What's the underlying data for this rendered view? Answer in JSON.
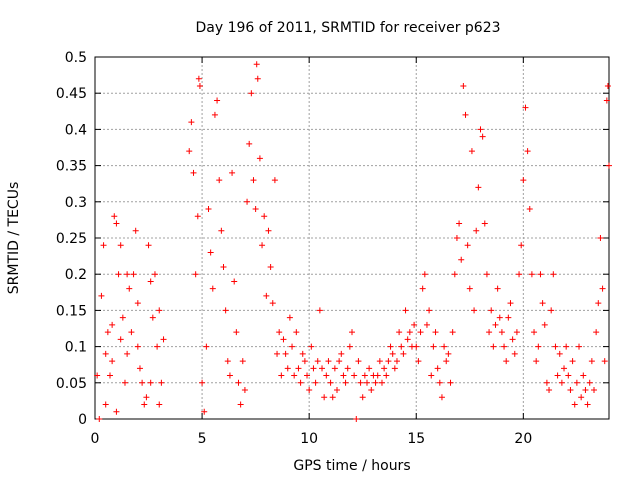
{
  "chart_data": {
    "type": "scatter",
    "title": "Day 196 of 2011, SRMTID for receiver p623",
    "xlabel": "GPS time / hours",
    "ylabel": "SRMTID / TECUs",
    "xlim": [
      0,
      24
    ],
    "ylim": [
      0,
      0.5
    ],
    "x_ticks": [
      {
        "value": 0,
        "label": "0"
      },
      {
        "value": 5,
        "label": "5"
      },
      {
        "value": 10,
        "label": "10"
      },
      {
        "value": 15,
        "label": "15"
      },
      {
        "value": 20,
        "label": "20"
      }
    ],
    "y_ticks": [
      {
        "value": 0,
        "label": "0"
      },
      {
        "value": 0.05,
        "label": "0.05"
      },
      {
        "value": 0.1,
        "label": "0.1"
      },
      {
        "value": 0.15,
        "label": "0.15"
      },
      {
        "value": 0.2,
        "label": "0.2"
      },
      {
        "value": 0.25,
        "label": "0.25"
      },
      {
        "value": 0.3,
        "label": "0.3"
      },
      {
        "value": 0.35,
        "label": "0.35"
      },
      {
        "value": 0.4,
        "label": "0.4"
      },
      {
        "value": 0.45,
        "label": "0.45"
      },
      {
        "value": 0.5,
        "label": "0.5"
      }
    ],
    "grid": true,
    "marker": "plus",
    "color": "#ff0000",
    "series": [
      {
        "name": "SRMTID",
        "points": [
          [
            0.1,
            0.06
          ],
          [
            0.2,
            0.0
          ],
          [
            0.3,
            0.17
          ],
          [
            0.4,
            0.24
          ],
          [
            0.5,
            0.09
          ],
          [
            0.6,
            0.12
          ],
          [
            0.7,
            0.06
          ],
          [
            0.8,
            0.08
          ],
          [
            0.9,
            0.28
          ],
          [
            1.0,
            0.27
          ],
          [
            1.1,
            0.2
          ],
          [
            1.2,
            0.24
          ],
          [
            1.3,
            0.14
          ],
          [
            1.4,
            0.05
          ],
          [
            1.5,
            0.09
          ],
          [
            1.6,
            0.18
          ],
          [
            1.7,
            0.12
          ],
          [
            1.8,
            0.2
          ],
          [
            1.9,
            0.26
          ],
          [
            2.0,
            0.16
          ],
          [
            2.1,
            0.07
          ],
          [
            2.2,
            0.05
          ],
          [
            2.3,
            0.02
          ],
          [
            2.4,
            0.03
          ],
          [
            2.5,
            0.24
          ],
          [
            2.6,
            0.19
          ],
          [
            2.7,
            0.14
          ],
          [
            2.8,
            0.2
          ],
          [
            2.9,
            0.1
          ],
          [
            3.0,
            0.02
          ],
          [
            3.1,
            0.05
          ],
          [
            3.2,
            0.11
          ],
          [
            0.5,
            0.02
          ],
          [
            1.0,
            0.01
          ],
          [
            1.5,
            0.2
          ],
          [
            2.0,
            0.1
          ],
          [
            2.6,
            0.05
          ],
          [
            3.0,
            0.15
          ],
          [
            1.2,
            0.11
          ],
          [
            0.8,
            0.13
          ],
          [
            4.4,
            0.37
          ],
          [
            4.5,
            0.41
          ],
          [
            4.6,
            0.34
          ],
          [
            4.7,
            0.2
          ],
          [
            4.8,
            0.28
          ],
          [
            4.85,
            0.47
          ],
          [
            4.9,
            0.46
          ],
          [
            5.0,
            0.05
          ],
          [
            5.1,
            0.01
          ],
          [
            5.2,
            0.1
          ],
          [
            5.3,
            0.29
          ],
          [
            5.4,
            0.23
          ],
          [
            5.5,
            0.18
          ],
          [
            5.6,
            0.42
          ],
          [
            5.7,
            0.44
          ],
          [
            5.8,
            0.33
          ],
          [
            5.9,
            0.26
          ],
          [
            6.0,
            0.21
          ],
          [
            6.1,
            0.15
          ],
          [
            6.2,
            0.08
          ],
          [
            6.3,
            0.06
          ],
          [
            6.4,
            0.34
          ],
          [
            6.5,
            0.19
          ],
          [
            6.6,
            0.12
          ],
          [
            6.7,
            0.05
          ],
          [
            6.8,
            0.02
          ],
          [
            6.9,
            0.08
          ],
          [
            7.0,
            0.04
          ],
          [
            7.1,
            0.3
          ],
          [
            7.2,
            0.38
          ],
          [
            7.3,
            0.45
          ],
          [
            7.4,
            0.33
          ],
          [
            7.5,
            0.29
          ],
          [
            7.55,
            0.49
          ],
          [
            7.6,
            0.47
          ],
          [
            7.7,
            0.36
          ],
          [
            7.8,
            0.24
          ],
          [
            7.9,
            0.28
          ],
          [
            8.0,
            0.17
          ],
          [
            8.1,
            0.26
          ],
          [
            8.2,
            0.21
          ],
          [
            8.3,
            0.16
          ],
          [
            8.4,
            0.33
          ],
          [
            8.5,
            0.09
          ],
          [
            8.6,
            0.12
          ],
          [
            8.7,
            0.06
          ],
          [
            8.8,
            0.11
          ],
          [
            8.9,
            0.09
          ],
          [
            9.0,
            0.07
          ],
          [
            9.1,
            0.14
          ],
          [
            9.2,
            0.1
          ],
          [
            9.3,
            0.06
          ],
          [
            9.4,
            0.12
          ],
          [
            9.5,
            0.07
          ],
          [
            9.6,
            0.05
          ],
          [
            9.7,
            0.09
          ],
          [
            9.8,
            0.08
          ],
          [
            9.9,
            0.06
          ],
          [
            10.0,
            0.04
          ],
          [
            10.1,
            0.1
          ],
          [
            10.2,
            0.07
          ],
          [
            10.3,
            0.05
          ],
          [
            10.4,
            0.08
          ],
          [
            10.5,
            0.15
          ],
          [
            10.6,
            0.07
          ],
          [
            10.7,
            0.03
          ],
          [
            10.8,
            0.06
          ],
          [
            10.9,
            0.08
          ],
          [
            11.0,
            0.05
          ],
          [
            11.1,
            0.03
          ],
          [
            11.2,
            0.07
          ],
          [
            11.3,
            0.04
          ],
          [
            11.4,
            0.08
          ],
          [
            11.5,
            0.09
          ],
          [
            11.6,
            0.06
          ],
          [
            11.7,
            0.05
          ],
          [
            11.8,
            0.07
          ],
          [
            11.9,
            0.1
          ],
          [
            12.0,
            0.12
          ],
          [
            12.1,
            0.06
          ],
          [
            12.2,
            0.0
          ],
          [
            12.3,
            0.08
          ],
          [
            12.4,
            0.05
          ],
          [
            12.5,
            0.03
          ],
          [
            12.6,
            0.06
          ],
          [
            12.7,
            0.05
          ],
          [
            12.8,
            0.07
          ],
          [
            12.9,
            0.04
          ],
          [
            13.0,
            0.06
          ],
          [
            13.1,
            0.05
          ],
          [
            13.2,
            0.06
          ],
          [
            13.3,
            0.08
          ],
          [
            13.4,
            0.05
          ],
          [
            13.5,
            0.07
          ],
          [
            13.6,
            0.06
          ],
          [
            13.7,
            0.08
          ],
          [
            13.8,
            0.1
          ],
          [
            13.9,
            0.09
          ],
          [
            14.0,
            0.07
          ],
          [
            14.1,
            0.08
          ],
          [
            14.2,
            0.12
          ],
          [
            14.3,
            0.1
          ],
          [
            14.4,
            0.09
          ],
          [
            14.5,
            0.15
          ],
          [
            14.6,
            0.11
          ],
          [
            14.7,
            0.12
          ],
          [
            14.8,
            0.1
          ],
          [
            14.9,
            0.13
          ],
          [
            15.0,
            0.1
          ],
          [
            15.1,
            0.08
          ],
          [
            15.2,
            0.12
          ],
          [
            15.3,
            0.18
          ],
          [
            15.4,
            0.2
          ],
          [
            15.5,
            0.13
          ],
          [
            15.6,
            0.15
          ],
          [
            15.7,
            0.06
          ],
          [
            15.8,
            0.1
          ],
          [
            15.9,
            0.12
          ],
          [
            16.0,
            0.07
          ],
          [
            16.1,
            0.05
          ],
          [
            16.2,
            0.03
          ],
          [
            16.3,
            0.1
          ],
          [
            16.4,
            0.08
          ],
          [
            16.5,
            0.09
          ],
          [
            16.6,
            0.05
          ],
          [
            16.7,
            0.12
          ],
          [
            16.8,
            0.2
          ],
          [
            16.9,
            0.25
          ],
          [
            17.0,
            0.27
          ],
          [
            17.1,
            0.22
          ],
          [
            17.2,
            0.46
          ],
          [
            17.3,
            0.42
          ],
          [
            17.4,
            0.24
          ],
          [
            17.5,
            0.18
          ],
          [
            17.6,
            0.37
          ],
          [
            17.7,
            0.15
          ],
          [
            17.8,
            0.26
          ],
          [
            17.9,
            0.32
          ],
          [
            18.0,
            0.4
          ],
          [
            18.1,
            0.39
          ],
          [
            18.2,
            0.27
          ],
          [
            18.3,
            0.2
          ],
          [
            18.4,
            0.12
          ],
          [
            18.5,
            0.15
          ],
          [
            18.6,
            0.1
          ],
          [
            18.7,
            0.13
          ],
          [
            18.8,
            0.18
          ],
          [
            18.9,
            0.14
          ],
          [
            19.0,
            0.12
          ],
          [
            19.1,
            0.1
          ],
          [
            19.2,
            0.08
          ],
          [
            19.3,
            0.14
          ],
          [
            19.4,
            0.16
          ],
          [
            19.5,
            0.11
          ],
          [
            19.6,
            0.09
          ],
          [
            19.7,
            0.12
          ],
          [
            19.8,
            0.2
          ],
          [
            19.9,
            0.24
          ],
          [
            20.0,
            0.33
          ],
          [
            20.1,
            0.43
          ],
          [
            20.2,
            0.37
          ],
          [
            20.3,
            0.29
          ],
          [
            20.4,
            0.2
          ],
          [
            20.5,
            0.12
          ],
          [
            20.6,
            0.08
          ],
          [
            20.7,
            0.1
          ],
          [
            20.8,
            0.2
          ],
          [
            20.9,
            0.16
          ],
          [
            21.0,
            0.13
          ],
          [
            21.1,
            0.05
          ],
          [
            21.2,
            0.04
          ],
          [
            21.3,
            0.15
          ],
          [
            21.4,
            0.2
          ],
          [
            21.5,
            0.1
          ],
          [
            21.6,
            0.06
          ],
          [
            21.7,
            0.09
          ],
          [
            21.8,
            0.05
          ],
          [
            21.9,
            0.07
          ],
          [
            22.0,
            0.1
          ],
          [
            22.1,
            0.06
          ],
          [
            22.2,
            0.04
          ],
          [
            22.3,
            0.08
          ],
          [
            22.4,
            0.02
          ],
          [
            22.5,
            0.05
          ],
          [
            22.6,
            0.1
          ],
          [
            22.7,
            0.03
          ],
          [
            22.8,
            0.06
          ],
          [
            22.9,
            0.04
          ],
          [
            23.0,
            0.02
          ],
          [
            23.1,
            0.05
          ],
          [
            23.2,
            0.08
          ],
          [
            23.3,
            0.04
          ],
          [
            23.4,
            0.12
          ],
          [
            23.5,
            0.16
          ],
          [
            23.6,
            0.25
          ],
          [
            23.7,
            0.18
          ],
          [
            23.8,
            0.08
          ],
          [
            23.9,
            0.44
          ],
          [
            23.95,
            0.46
          ],
          [
            24.0,
            0.35
          ]
        ]
      }
    ]
  }
}
